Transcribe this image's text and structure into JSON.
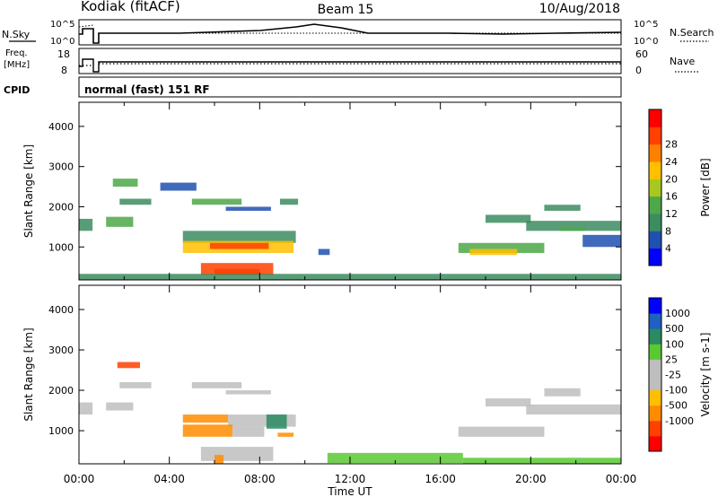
{
  "header": {
    "station": "Kodiak (fitACF)",
    "beam": "Beam 15",
    "date": "10/Aug/2018"
  },
  "noise_panel": {
    "left_label": "N.Sky",
    "left_ticks": [
      "10^5",
      "10^0"
    ],
    "right_label": "N.Search",
    "right_ticks": [
      "10^5",
      "10^0"
    ]
  },
  "freq_panel": {
    "left_label_1": "Freq.",
    "left_label_2": "[MHz]",
    "left_ticks": [
      "18",
      "8"
    ],
    "right_label": "Nave",
    "right_ticks": [
      "60",
      "0"
    ]
  },
  "cpid": {
    "label": "CPID",
    "value": "normal (fast) 151 RF"
  },
  "x_axis": {
    "label": "Time UT",
    "ticks": [
      "00:00",
      "04:00",
      "08:00",
      "12:00",
      "16:00",
      "20:00",
      "00:00"
    ]
  },
  "colors": {
    "power_scale": [
      "#0000ff",
      "#2050b0",
      "#3c8c60",
      "#4ca848",
      "#a8c820",
      "#ffc000",
      "#ff8000",
      "#ff4000",
      "#ff0000"
    ],
    "velocity_scale": [
      "#ff0000",
      "#ff4000",
      "#ff8c00",
      "#ffbf00",
      "#bebebe",
      "#bebebe",
      "#5ac832",
      "#2a8a60",
      "#2060c0",
      "#0000ff"
    ]
  },
  "chart_data": [
    {
      "type": "heatmap",
      "title": "Power",
      "ylabel": "Slant Range [km]",
      "xlabel": "Time UT",
      "xlim": [
        0,
        24
      ],
      "ylim": [
        180,
        4600
      ],
      "y_ticks": [
        "1000",
        "2000",
        "3000",
        "4000"
      ],
      "colorbar": {
        "label": "Power [dB]",
        "ticks": [
          "4",
          "8",
          "12",
          "16",
          "20",
          "24",
          "28"
        ],
        "range": [
          0,
          32
        ]
      },
      "regions": [
        {
          "t0": 0.0,
          "t1": 0.6,
          "r0": 1400,
          "r1": 1700,
          "v": 10
        },
        {
          "t0": 1.2,
          "t1": 2.4,
          "r0": 1500,
          "r1": 1750,
          "v": 14
        },
        {
          "t0": 1.8,
          "t1": 3.2,
          "r0": 2050,
          "r1": 2200,
          "v": 9
        },
        {
          "t0": 1.5,
          "t1": 2.6,
          "r0": 2500,
          "r1": 2700,
          "v": 11
        },
        {
          "t0": 3.6,
          "t1": 5.2,
          "r0": 2400,
          "r1": 2600,
          "v": 6
        },
        {
          "t0": 5.0,
          "t1": 7.2,
          "r0": 2050,
          "r1": 2200,
          "v": 12
        },
        {
          "t0": 6.5,
          "t1": 8.5,
          "r0": 1900,
          "r1": 2000,
          "v": 7
        },
        {
          "t0": 8.9,
          "t1": 9.7,
          "r0": 2050,
          "r1": 2200,
          "v": 8
        },
        {
          "t0": 4.6,
          "t1": 9.6,
          "r0": 1100,
          "r1": 1400,
          "v": 10
        },
        {
          "t0": 4.6,
          "t1": 9.5,
          "r0": 850,
          "r1": 1150,
          "v": 21
        },
        {
          "t0": 5.8,
          "t1": 8.4,
          "r0": 950,
          "r1": 1100,
          "v": 26
        },
        {
          "t0": 5.4,
          "t1": 8.6,
          "r0": 300,
          "r1": 600,
          "v": 25
        },
        {
          "t0": 6.0,
          "t1": 8.0,
          "r0": 300,
          "r1": 450,
          "v": 28
        },
        {
          "t0": 10.6,
          "t1": 11.1,
          "r0": 800,
          "r1": 950,
          "v": 6
        },
        {
          "t0": 0.0,
          "t1": 24.0,
          "r0": 180,
          "r1": 330,
          "v": 8
        },
        {
          "t0": 16.8,
          "t1": 20.6,
          "r0": 850,
          "r1": 1100,
          "v": 11
        },
        {
          "t0": 17.3,
          "t1": 19.4,
          "r0": 800,
          "r1": 950,
          "v": 21
        },
        {
          "t0": 19.8,
          "t1": 24.0,
          "r0": 1400,
          "r1": 1650,
          "v": 10
        },
        {
          "t0": 18.0,
          "t1": 20.0,
          "r0": 1600,
          "r1": 1800,
          "v": 9
        },
        {
          "t0": 20.6,
          "t1": 22.2,
          "r0": 1900,
          "r1": 2050,
          "v": 9
        },
        {
          "t0": 21.3,
          "t1": 22.4,
          "r0": 1400,
          "r1": 1500,
          "v": 12
        },
        {
          "t0": 22.3,
          "t1": 24.0,
          "r0": 1000,
          "r1": 1300,
          "v": 6
        }
      ]
    },
    {
      "type": "heatmap",
      "title": "Velocity",
      "ylabel": "Slant Range [km]",
      "xlabel": "Time UT",
      "xlim": [
        0,
        24
      ],
      "ylim": [
        180,
        4600
      ],
      "y_ticks": [
        "1000",
        "2000",
        "3000",
        "4000"
      ],
      "colorbar": {
        "label": "Velocity [m s-1]",
        "ticks": [
          "1000",
          "500",
          "100",
          "25",
          "-25",
          "-100",
          "-500",
          "-1000"
        ],
        "range": [
          -1200,
          1200
        ]
      },
      "regions": [
        {
          "t0": 0.0,
          "t1": 0.6,
          "r0": 1400,
          "r1": 1700,
          "v": 0
        },
        {
          "t0": 1.2,
          "t1": 2.4,
          "r0": 1500,
          "r1": 1700,
          "v": 0
        },
        {
          "t0": 1.7,
          "t1": 2.7,
          "r0": 2550,
          "r1": 2700,
          "v": -600
        },
        {
          "t0": 1.8,
          "t1": 3.2,
          "r0": 2050,
          "r1": 2200,
          "v": 0
        },
        {
          "t0": 5.0,
          "t1": 7.2,
          "r0": 2050,
          "r1": 2200,
          "v": 0
        },
        {
          "t0": 6.5,
          "t1": 8.5,
          "r0": 1900,
          "r1": 2000,
          "v": 0
        },
        {
          "t0": 4.6,
          "t1": 6.6,
          "r0": 1200,
          "r1": 1400,
          "v": -150
        },
        {
          "t0": 6.6,
          "t1": 9.6,
          "r0": 1100,
          "r1": 1400,
          "v": 0
        },
        {
          "t0": 4.6,
          "t1": 6.8,
          "r0": 850,
          "r1": 1150,
          "v": -200
        },
        {
          "t0": 6.8,
          "t1": 8.2,
          "r0": 850,
          "r1": 1100,
          "v": 0
        },
        {
          "t0": 8.3,
          "t1": 9.2,
          "r0": 1050,
          "r1": 1400,
          "v": 150
        },
        {
          "t0": 8.8,
          "t1": 9.5,
          "r0": 850,
          "r1": 950,
          "v": -200
        },
        {
          "t0": 5.4,
          "t1": 8.6,
          "r0": 250,
          "r1": 600,
          "v": 0
        },
        {
          "t0": 6.0,
          "t1": 6.4,
          "r0": 180,
          "r1": 400,
          "v": -150
        },
        {
          "t0": 11.0,
          "t1": 17.0,
          "r0": 200,
          "r1": 450,
          "v": 60
        },
        {
          "t0": 17.0,
          "t1": 24.0,
          "r0": 180,
          "r1": 330,
          "v": 40
        },
        {
          "t0": 16.8,
          "t1": 20.6,
          "r0": 850,
          "r1": 1100,
          "v": 0
        },
        {
          "t0": 19.8,
          "t1": 24.0,
          "r0": 1400,
          "r1": 1650,
          "v": 0
        },
        {
          "t0": 18.0,
          "t1": 20.0,
          "r0": 1600,
          "r1": 1800,
          "v": 0
        },
        {
          "t0": 20.6,
          "t1": 22.2,
          "r0": 1850,
          "r1": 2050,
          "v": 0
        }
      ]
    }
  ]
}
